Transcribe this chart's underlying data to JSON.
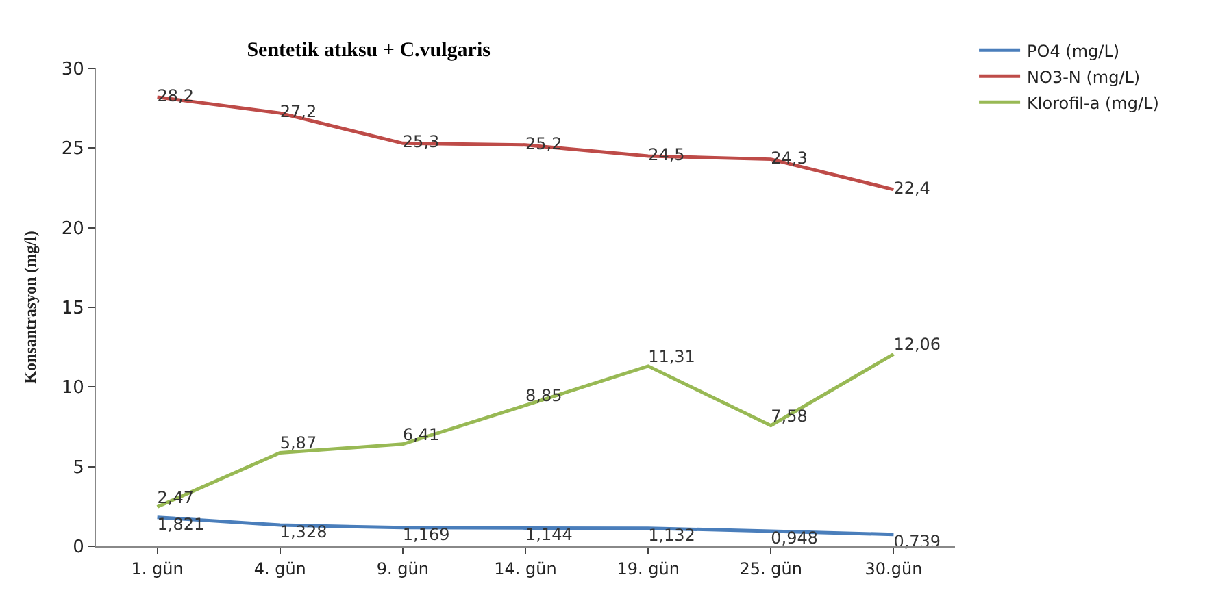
{
  "chart_data": {
    "type": "line",
    "title": "Sentetik atıksu + C.vulgaris",
    "ylabel": "Konsantrasyon (mg/l)",
    "categories": [
      "1. gün",
      "4. gün",
      "9. gün",
      "14. gün",
      "19. gün",
      "25. gün",
      "30.gün"
    ],
    "ylim": [
      0,
      30
    ],
    "yticks": [
      0,
      5,
      10,
      15,
      20,
      25,
      30
    ],
    "grid": false,
    "legend": "top right",
    "marker": "none",
    "series": [
      {
        "name": "PO4 (mg/L)",
        "color": "#4a7ebb",
        "values": [
          1.821,
          1.328,
          1.169,
          1.144,
          1.132,
          0.948,
          0.739
        ],
        "value_labels": [
          "1,821",
          "1,328",
          "1,169",
          "1,144",
          "1,132",
          "0,948",
          "0,739"
        ]
      },
      {
        "name": "NO3-N (mg/L)",
        "color": "#be4b48",
        "values": [
          28.2,
          27.2,
          25.3,
          25.2,
          24.5,
          24.3,
          22.4
        ],
        "value_labels": [
          "28,2",
          "27,2",
          "25,3",
          "25,2",
          "24,5",
          "24,3",
          "22,4"
        ]
      },
      {
        "name": "Klorofil-a (mg/L)",
        "color": "#98b954",
        "values": [
          2.47,
          5.87,
          6.41,
          8.85,
          11.31,
          7.58,
          12.06
        ],
        "value_labels": [
          "2,47",
          "5,87",
          "6,41",
          "8,85",
          "11,31",
          "7,58",
          "12,06"
        ]
      }
    ]
  }
}
